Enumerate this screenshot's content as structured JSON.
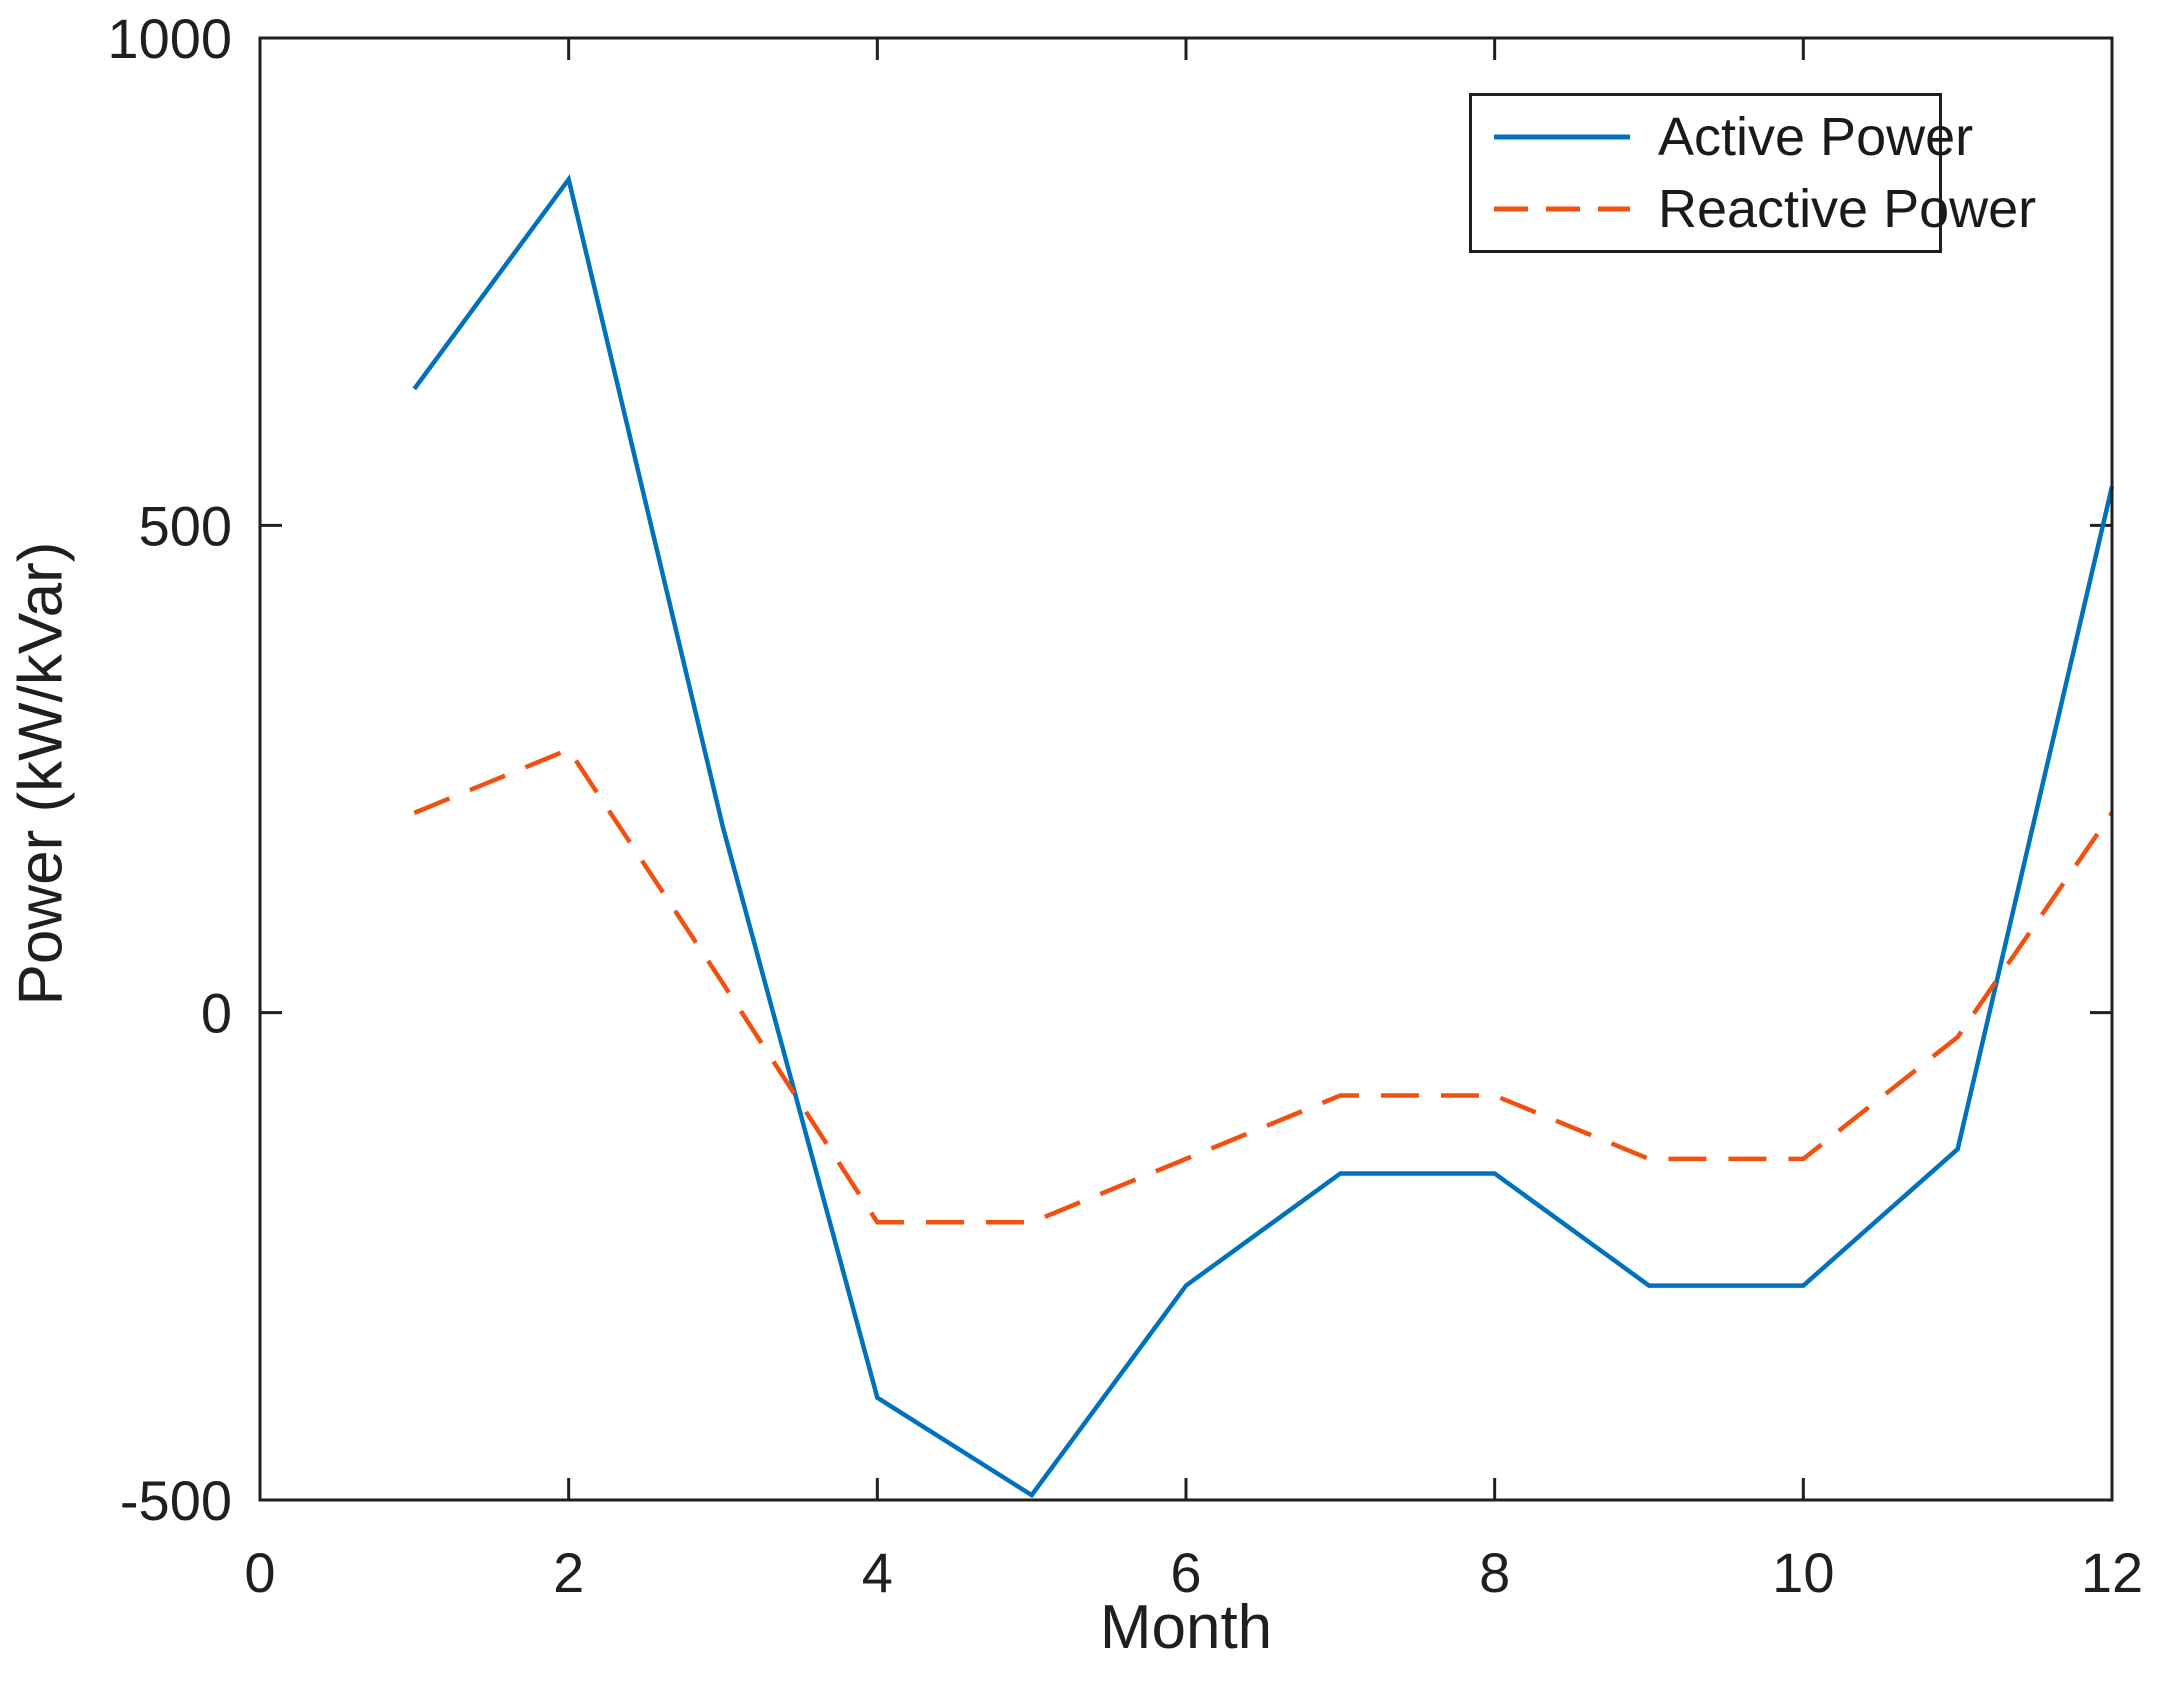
{
  "figure": {
    "background": "#ffffff",
    "axes_color": "#1f1f1f"
  },
  "chart_data": {
    "type": "line",
    "title": "",
    "xlabel": "Month",
    "ylabel": "Power (kW/kVar)",
    "xlim": [
      0,
      12
    ],
    "ylim": [
      -500,
      1000
    ],
    "xticks": [
      0,
      2,
      4,
      6,
      8,
      10,
      12
    ],
    "yticks": [
      -500,
      0,
      500,
      1000
    ],
    "grid": false,
    "box": true,
    "legend_position": "top-right",
    "x": [
      1,
      2,
      3,
      4,
      5,
      6,
      7,
      8,
      9,
      10,
      11,
      12
    ],
    "series": [
      {
        "name": "Active Power",
        "style": "solid",
        "color": "#0072BD",
        "values": [
          640,
          855,
          190,
          -395,
          -495,
          -280,
          -165,
          -165,
          -280,
          -280,
          -140,
          540
        ]
      },
      {
        "name": "Reactive Power",
        "style": "dashed",
        "color": "#F2500F",
        "values": [
          205,
          270,
          30,
          -215,
          -215,
          -150,
          -85,
          -85,
          -150,
          -150,
          -25,
          205
        ]
      }
    ]
  }
}
